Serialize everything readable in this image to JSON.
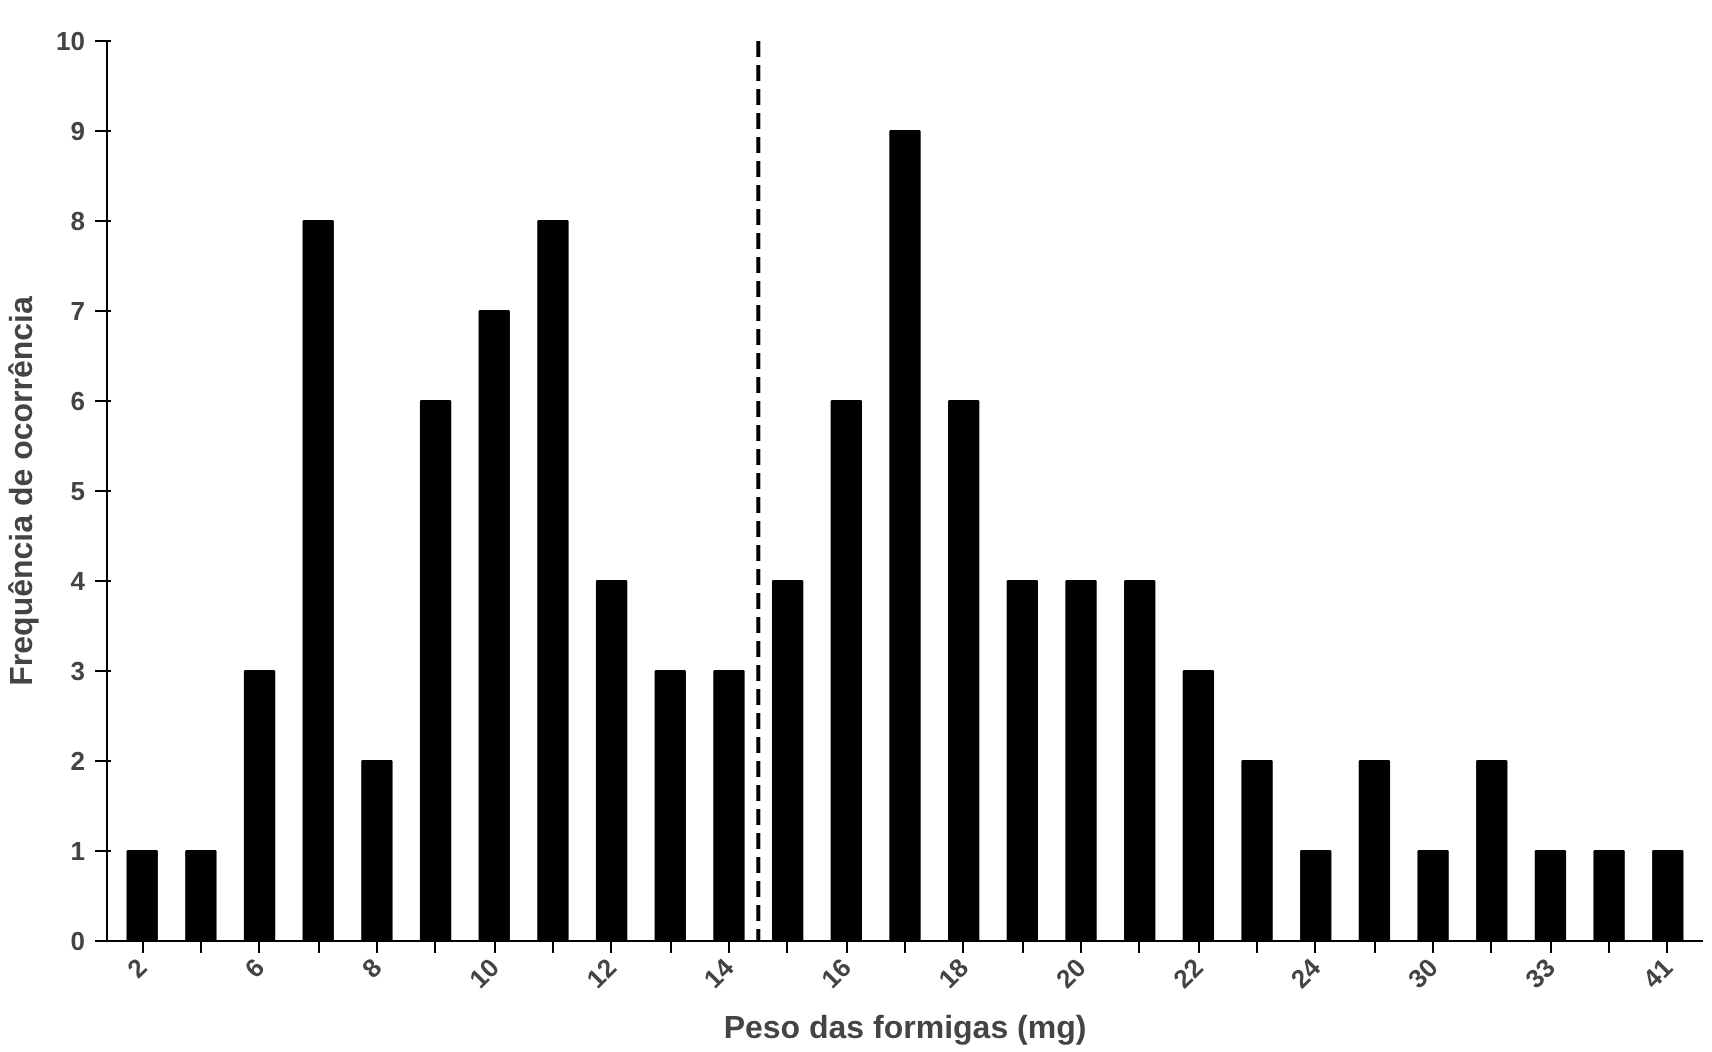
{
  "chart_data": {
    "type": "bar",
    "xlabel": "Peso das formigas (mg)",
    "ylabel": "Frequência de ocorrência",
    "categories": [
      "2",
      null,
      "6",
      null,
      "8",
      null,
      "10",
      null,
      "12",
      null,
      "14",
      null,
      "16",
      null,
      "18",
      null,
      "20",
      null,
      "22",
      null,
      "24",
      null,
      "30",
      null,
      "33",
      null,
      "41"
    ],
    "values": [
      1,
      1,
      3,
      8,
      2,
      6,
      7,
      8,
      4,
      3,
      3,
      4,
      6,
      9,
      6,
      4,
      4,
      4,
      3,
      2,
      1,
      2,
      1,
      2,
      1,
      1,
      1
    ],
    "color": "#000000",
    "ylim": [
      0,
      10
    ],
    "yticks": [
      0,
      1,
      2,
      3,
      4,
      5,
      6,
      7,
      8,
      9,
      10
    ],
    "grid": false
  }
}
